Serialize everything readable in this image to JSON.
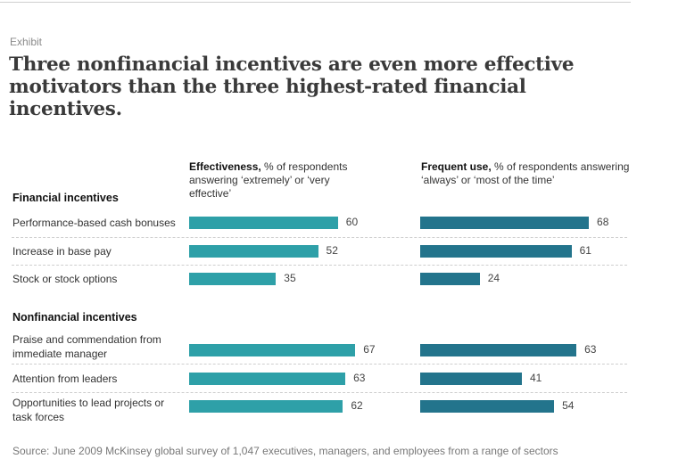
{
  "header": {
    "label": "Exhibit",
    "title": "Three nonfinancial incentives are even more effective motivators than the three highest-rated financial incentives."
  },
  "colors": {
    "effectiveness": "#2ea0a8",
    "frequent_use": "#23748c"
  },
  "chart_data": {
    "type": "bar",
    "orientation": "horizontal",
    "title": "Three nonfinancial incentives are even more effective motivators than the three highest-rated financial incentives.",
    "unit": "% of respondents",
    "xlim": [
      0,
      100
    ],
    "grid": false,
    "groups": [
      {
        "name": "Financial incentives",
        "categories": [
          "Performance-based cash bonuses",
          "Increase in base pay",
          "Stock or stock options"
        ]
      },
      {
        "name": "Nonfinancial incentives",
        "categories": [
          "Praise and commendation from immediate manager",
          "Attention from leaders",
          "Opportunities to lead projects or task forces"
        ]
      }
    ],
    "categories": [
      "Performance-based cash bonuses",
      "Increase in base pay",
      "Stock or stock options",
      "Praise and commendation from immediate manager",
      "Attention from leaders",
      "Opportunities to lead projects or task forces"
    ],
    "series": [
      {
        "name": "Effectiveness",
        "bold_label": "Effectiveness,",
        "description": " % of respondents answering ‘extremely’ or ‘very effective’",
        "values": [
          60,
          52,
          35,
          67,
          63,
          62
        ]
      },
      {
        "name": "Frequent use",
        "bold_label": "Frequent use,",
        "description": " % of respondents answering ‘always’ or ‘most of the time’",
        "values": [
          68,
          61,
          24,
          63,
          41,
          54
        ]
      }
    ],
    "source": "Source: June 2009 McKinsey global survey of 1,047 executives, managers, and employees from a range of sectors"
  }
}
